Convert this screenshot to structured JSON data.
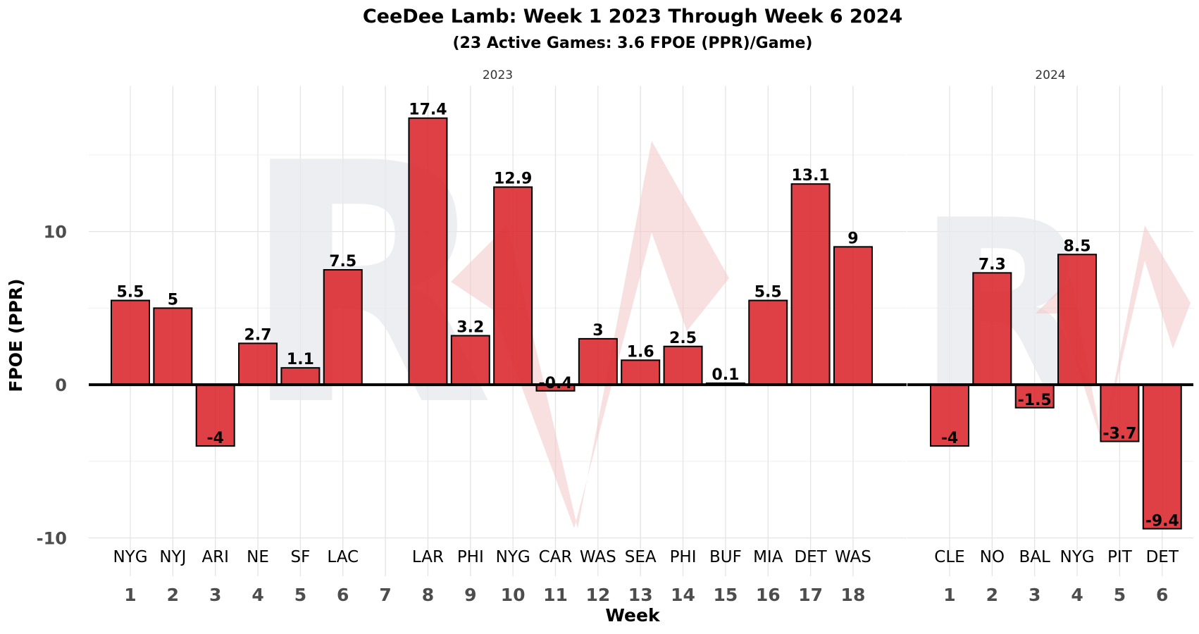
{
  "chart_data": {
    "type": "bar",
    "title": "CeeDee Lamb: Week 1 2023 Through Week 6 2024",
    "subtitle": "(23 Active Games: 3.6 FPOE (PPR)/Game)",
    "xlabel": "Week",
    "ylabel": "FPOE (PPR)",
    "ylim": [
      -12.5,
      19.5
    ],
    "yticks": [
      -10,
      0,
      10
    ],
    "ytick_labels": [
      "-10",
      "0",
      "10"
    ],
    "colors": {
      "bar": "#d9262b",
      "watermark_letter": "#e6e8ec",
      "watermark_shape": "#f3c6c6"
    },
    "panels": [
      {
        "name": "2023",
        "weeks": [
          1,
          2,
          3,
          4,
          5,
          6,
          7,
          8,
          9,
          10,
          11,
          12,
          13,
          14,
          15,
          16,
          17,
          18
        ],
        "bars": [
          {
            "week": 1,
            "opponent": "NYG",
            "value": 5.5,
            "label": "5.5"
          },
          {
            "week": 2,
            "opponent": "NYJ",
            "value": 5,
            "label": "5"
          },
          {
            "week": 3,
            "opponent": "ARI",
            "value": -4,
            "label": "-4"
          },
          {
            "week": 4,
            "opponent": "NE",
            "value": 2.7,
            "label": "2.7"
          },
          {
            "week": 5,
            "opponent": "SF",
            "value": 1.1,
            "label": "1.1"
          },
          {
            "week": 6,
            "opponent": "LAC",
            "value": 7.5,
            "label": "7.5"
          },
          {
            "week": 8,
            "opponent": "LAR",
            "value": 17.4,
            "label": "17.4"
          },
          {
            "week": 9,
            "opponent": "PHI",
            "value": 3.2,
            "label": "3.2"
          },
          {
            "week": 10,
            "opponent": "NYG",
            "value": 12.9,
            "label": "12.9"
          },
          {
            "week": 11,
            "opponent": "CAR",
            "value": -0.4,
            "label": "-0.4"
          },
          {
            "week": 12,
            "opponent": "WAS",
            "value": 3,
            "label": "3"
          },
          {
            "week": 13,
            "opponent": "SEA",
            "value": 1.6,
            "label": "1.6"
          },
          {
            "week": 14,
            "opponent": "PHI",
            "value": 2.5,
            "label": "2.5"
          },
          {
            "week": 15,
            "opponent": "BUF",
            "value": 0.1,
            "label": "0.1"
          },
          {
            "week": 16,
            "opponent": "MIA",
            "value": 5.5,
            "label": "5.5"
          },
          {
            "week": 17,
            "opponent": "DET",
            "value": 13.1,
            "label": "13.1"
          },
          {
            "week": 18,
            "opponent": "WAS",
            "value": 9,
            "label": "9"
          }
        ]
      },
      {
        "name": "2024",
        "weeks": [
          1,
          2,
          3,
          4,
          5,
          6
        ],
        "bars": [
          {
            "week": 1,
            "opponent": "CLE",
            "value": -4,
            "label": "-4"
          },
          {
            "week": 2,
            "opponent": "NO",
            "value": 7.3,
            "label": "7.3"
          },
          {
            "week": 3,
            "opponent": "BAL",
            "value": -1.5,
            "label": "-1.5"
          },
          {
            "week": 4,
            "opponent": "NYG",
            "value": 8.5,
            "label": "8.5"
          },
          {
            "week": 5,
            "opponent": "PIT",
            "value": -3.7,
            "label": "-3.7"
          },
          {
            "week": 6,
            "opponent": "DET",
            "value": -9.4,
            "label": "-9.4"
          }
        ]
      }
    ]
  }
}
